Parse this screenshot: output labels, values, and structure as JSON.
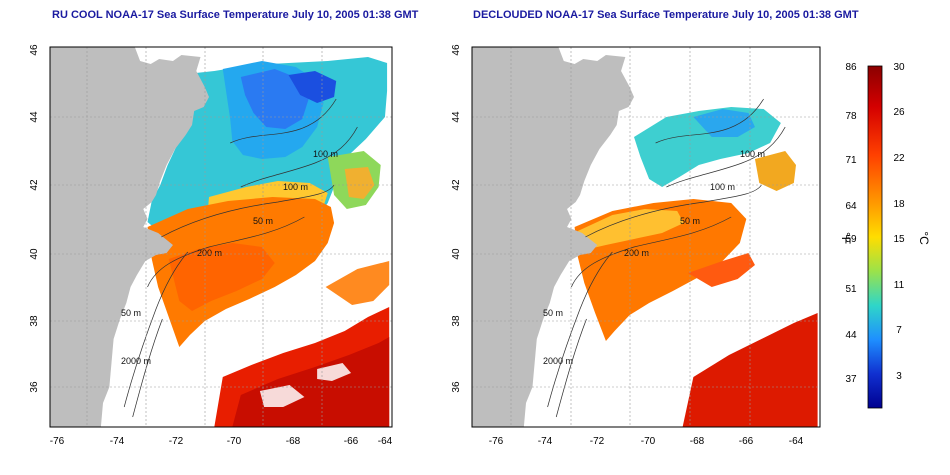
{
  "maps": [
    {
      "title": "RU COOL NOAA-17 Sea Surface Temperature July 10, 2005 01:38 GMT",
      "variant": "full",
      "x_ticks": [
        "-76",
        "-74",
        "-72",
        "-70",
        "-68",
        "-66",
        "-64"
      ],
      "y_ticks": [
        "36",
        "38",
        "40",
        "42",
        "44",
        "46"
      ],
      "contour_labels": [
        "100 m",
        "100 m",
        "50 m",
        "200 m",
        "50 m",
        "2000 m"
      ]
    },
    {
      "title": "DECLOUDED NOAA-17 Sea Surface Temperature July 10, 2005 01:38 GMT",
      "variant": "declouded",
      "x_ticks": [
        "-76",
        "-74",
        "-72",
        "-70",
        "-68",
        "-66",
        "-64"
      ],
      "y_ticks": [
        "36",
        "38",
        "40",
        "42",
        "44",
        "46"
      ],
      "contour_labels": [
        "100 m",
        "100 m",
        "50 m",
        "200 m",
        "50 m",
        "2000 m"
      ]
    }
  ],
  "colorbar": {
    "fahrenheit_ticks": [
      "86",
      "78",
      "71",
      "64",
      "59",
      "51",
      "44",
      "37"
    ],
    "celsius_ticks": [
      "30",
      "26",
      "22",
      "18",
      "15",
      "11",
      "7",
      "3"
    ],
    "fahrenheit_unit": "°F",
    "celsius_unit": "°C",
    "colors": [
      "#8b0000",
      "#d40000",
      "#ff4000",
      "#ff9900",
      "#ffdd00",
      "#9be24a",
      "#2fd6c8",
      "#1e8fff",
      "#1030d0",
      "#000090"
    ]
  },
  "colors": {
    "land": "#bebebe",
    "title": "#1a1aa0",
    "grid": "#9a9a9a"
  }
}
